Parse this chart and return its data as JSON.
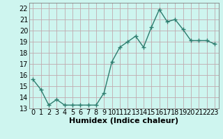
{
  "x": [
    0,
    1,
    2,
    3,
    4,
    5,
    6,
    7,
    8,
    9,
    10,
    11,
    12,
    13,
    14,
    15,
    16,
    17,
    18,
    19,
    20,
    21,
    22,
    23
  ],
  "y": [
    15.6,
    14.7,
    13.3,
    13.8,
    13.3,
    13.3,
    13.3,
    13.3,
    13.3,
    14.4,
    17.2,
    18.5,
    19.0,
    19.5,
    18.5,
    20.3,
    21.9,
    20.8,
    21.0,
    20.1,
    19.1,
    19.1,
    19.1,
    18.8
  ],
  "line_color": "#2d7d6f",
  "marker": "+",
  "bg_color": "#cef5ef",
  "grid_color": "#c0aaaf",
  "xlabel": "Humidex (Indice chaleur)",
  "ylim": [
    13,
    22.5
  ],
  "xlim": [
    -0.5,
    23.5
  ],
  "yticks": [
    13,
    14,
    15,
    16,
    17,
    18,
    19,
    20,
    21,
    22
  ],
  "xtick_labels": [
    "0",
    "1",
    "2",
    "3",
    "4",
    "5",
    "6",
    "7",
    "8",
    "9",
    "10",
    "11",
    "12",
    "13",
    "14",
    "15",
    "16",
    "17",
    "18",
    "19",
    "20",
    "21",
    "22",
    "23"
  ],
  "linewidth": 1.0,
  "markersize": 4,
  "markeredgewidth": 1.0,
  "xlabel_fontsize": 8,
  "tick_fontsize": 7,
  "spine_color": "#808080"
}
